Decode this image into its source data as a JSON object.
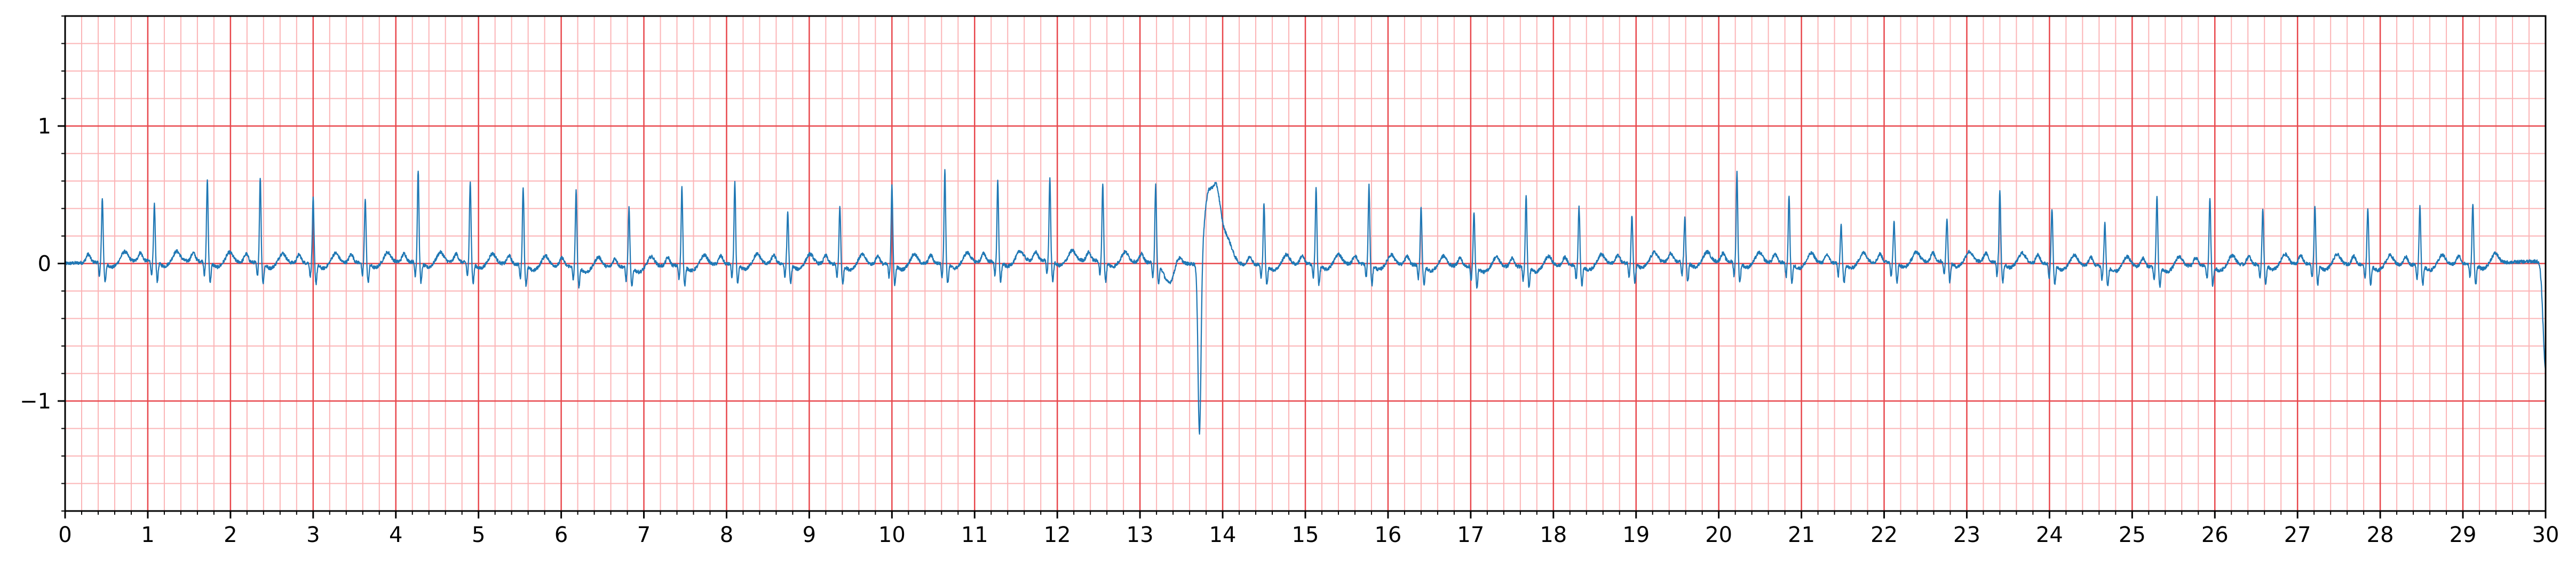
{
  "chart_data": {
    "type": "line",
    "title": "",
    "xlabel": "",
    "ylabel": "",
    "xlim": [
      0,
      30
    ],
    "ylim": [
      -1.8,
      1.8
    ],
    "x_ticks": [
      "0",
      "1",
      "2",
      "3",
      "4",
      "5",
      "6",
      "7",
      "8",
      "9",
      "10",
      "11",
      "12",
      "13",
      "14",
      "15",
      "16",
      "17",
      "18",
      "19",
      "20",
      "21",
      "22",
      "23",
      "24",
      "25",
      "26",
      "27",
      "28",
      "29",
      "30"
    ],
    "y_ticks": [
      {
        "value": 1,
        "label": "1"
      },
      {
        "value": 0,
        "label": "0"
      },
      {
        "value": -1,
        "label": "−1"
      }
    ],
    "x_minor_step": 0.2,
    "y_minor_step": 0.2,
    "grid": true,
    "colors": {
      "trace": "#1f77b4",
      "grid_major": "#e8474c",
      "grid_minor": "#fbb4b6",
      "axis": "#000000"
    },
    "series": [
      {
        "values_note": "ECG lead trace, amplitude in mV-like units, sampled along time axis",
        "beat_times": [
          0.45,
          1.08,
          1.72,
          2.36,
          3.0,
          3.63,
          4.27,
          4.9,
          5.54,
          6.18,
          6.82,
          7.46,
          8.1,
          8.74,
          9.37,
          10.0,
          10.64,
          11.28,
          11.91,
          12.55,
          13.19,
          14.5,
          15.13,
          15.77,
          16.4,
          17.04,
          17.67,
          18.31,
          18.95,
          19.59,
          20.22,
          20.85,
          21.48,
          22.12,
          22.76,
          23.4,
          24.03,
          24.67,
          25.3,
          25.94,
          26.58,
          27.21,
          27.85,
          28.48,
          29.12
        ],
        "beat_peaks": [
          0.47,
          0.41,
          0.6,
          0.62,
          0.47,
          0.47,
          0.67,
          0.6,
          0.57,
          0.55,
          0.43,
          0.58,
          0.6,
          0.38,
          0.42,
          0.58,
          0.68,
          0.58,
          0.6,
          0.57,
          0.57,
          0.45,
          0.55,
          0.57,
          0.43,
          0.4,
          0.53,
          0.43,
          0.35,
          0.32,
          0.65,
          0.49,
          0.28,
          0.3,
          0.32,
          0.52,
          0.4,
          0.32,
          0.52,
          0.5,
          0.4,
          0.42,
          0.42,
          0.44,
          0.44
        ],
        "pvc": {
          "time": 13.72,
          "peak": 0.5,
          "trough": -1.22
        },
        "end_value": -0.78
      }
    ]
  }
}
